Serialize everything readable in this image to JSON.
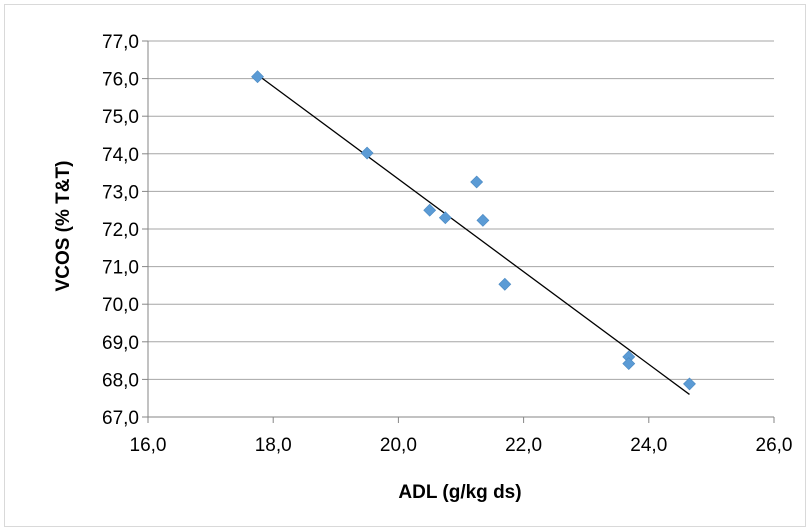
{
  "chart_data": {
    "type": "scatter",
    "title": "",
    "xlabel": "ADL (g/kg ds)",
    "ylabel": "VCOS (% T&T)",
    "xlim": [
      16,
      26
    ],
    "ylim": [
      67,
      77
    ],
    "x_ticks": [
      "16,0",
      "18,0",
      "20,0",
      "22,0",
      "24,0",
      "26,0"
    ],
    "y_ticks": [
      "67,0",
      "68,0",
      "69,0",
      "70,0",
      "71,0",
      "72,0",
      "73,0",
      "74,0",
      "75,0",
      "76,0",
      "77,0"
    ],
    "grid": "horizontal",
    "legend": "none",
    "marker": "diamond",
    "colors": {
      "points": "#5b9bd5",
      "trendline": "#000000",
      "grid": "#a6a6a6",
      "axis": "#868686"
    },
    "series": [
      {
        "x": [
          17.75,
          19.5,
          20.5,
          20.75,
          21.25,
          21.35,
          21.7,
          23.68,
          23.68,
          24.65
        ],
        "y": [
          76.05,
          74.02,
          72.5,
          72.3,
          73.25,
          72.23,
          70.53,
          68.6,
          68.42,
          67.88
        ]
      }
    ],
    "trendline": {
      "x": [
        17.75,
        24.65
      ],
      "y": [
        76.1,
        67.6
      ]
    }
  }
}
